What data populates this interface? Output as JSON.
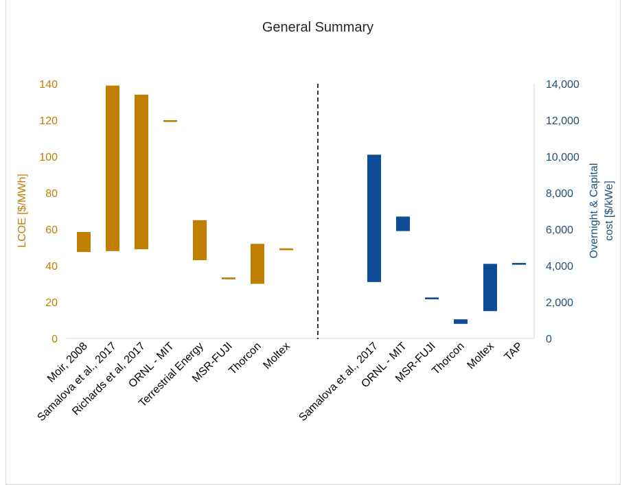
{
  "chart_data": {
    "type": "bar",
    "title": "General Summary",
    "left_axis": {
      "label": "LCOE [$/MWh]",
      "range": [
        0,
        140
      ],
      "ticks": [
        "0",
        "20",
        "40",
        "60",
        "80",
        "100",
        "120",
        "140"
      ],
      "color": "#c07f00"
    },
    "right_axis": {
      "label_lines": [
        "Overnight & Capital",
        "cost [$/kWe]"
      ],
      "range": [
        0,
        14000
      ],
      "ticks": [
        "0",
        "2,000",
        "4,000",
        "6,000",
        "8,000",
        "10,000",
        "12,000",
        "14,000"
      ],
      "color": "#0e4c96"
    },
    "series": [
      {
        "axis": "left",
        "color": "#c07f00",
        "bars": [
          {
            "category": "Moir, 2008",
            "low": 47.5,
            "high": 58.5
          },
          {
            "category": "Samalova et al., 2017",
            "low": 48,
            "high": 139
          },
          {
            "category": "Richards et al, 2017",
            "low": 49,
            "high": 134
          },
          {
            "category": "ORNL - MIT",
            "low": 119,
            "high": 120
          },
          {
            "category": "Terrestrial Energy",
            "low": 43,
            "high": 65
          },
          {
            "category": "MSR-FUJI",
            "low": 32.5,
            "high": 33.5
          },
          {
            "category": "Thorcon",
            "low": 30,
            "high": 52
          },
          {
            "category": "Moltex",
            "low": 48.5,
            "high": 49.5
          }
        ]
      },
      {
        "axis": "right",
        "color": "#0e4c96",
        "bars": [
          {
            "category": "Samalova et al., 2017",
            "low": 3100,
            "high": 10100
          },
          {
            "category": "ORNL - MIT",
            "low": 5900,
            "high": 6700
          },
          {
            "category": "MSR-FUJI",
            "low": 2150,
            "high": 2250
          },
          {
            "category": "Thorcon",
            "low": 800,
            "high": 1050
          },
          {
            "category": "Moltex",
            "low": 1500,
            "high": 4100
          },
          {
            "category": "TAP",
            "low": 4050,
            "high": 4150
          }
        ]
      }
    ],
    "divider": "dashed vertical line between LCOE and cost groups",
    "grid": false,
    "legend": "none"
  }
}
